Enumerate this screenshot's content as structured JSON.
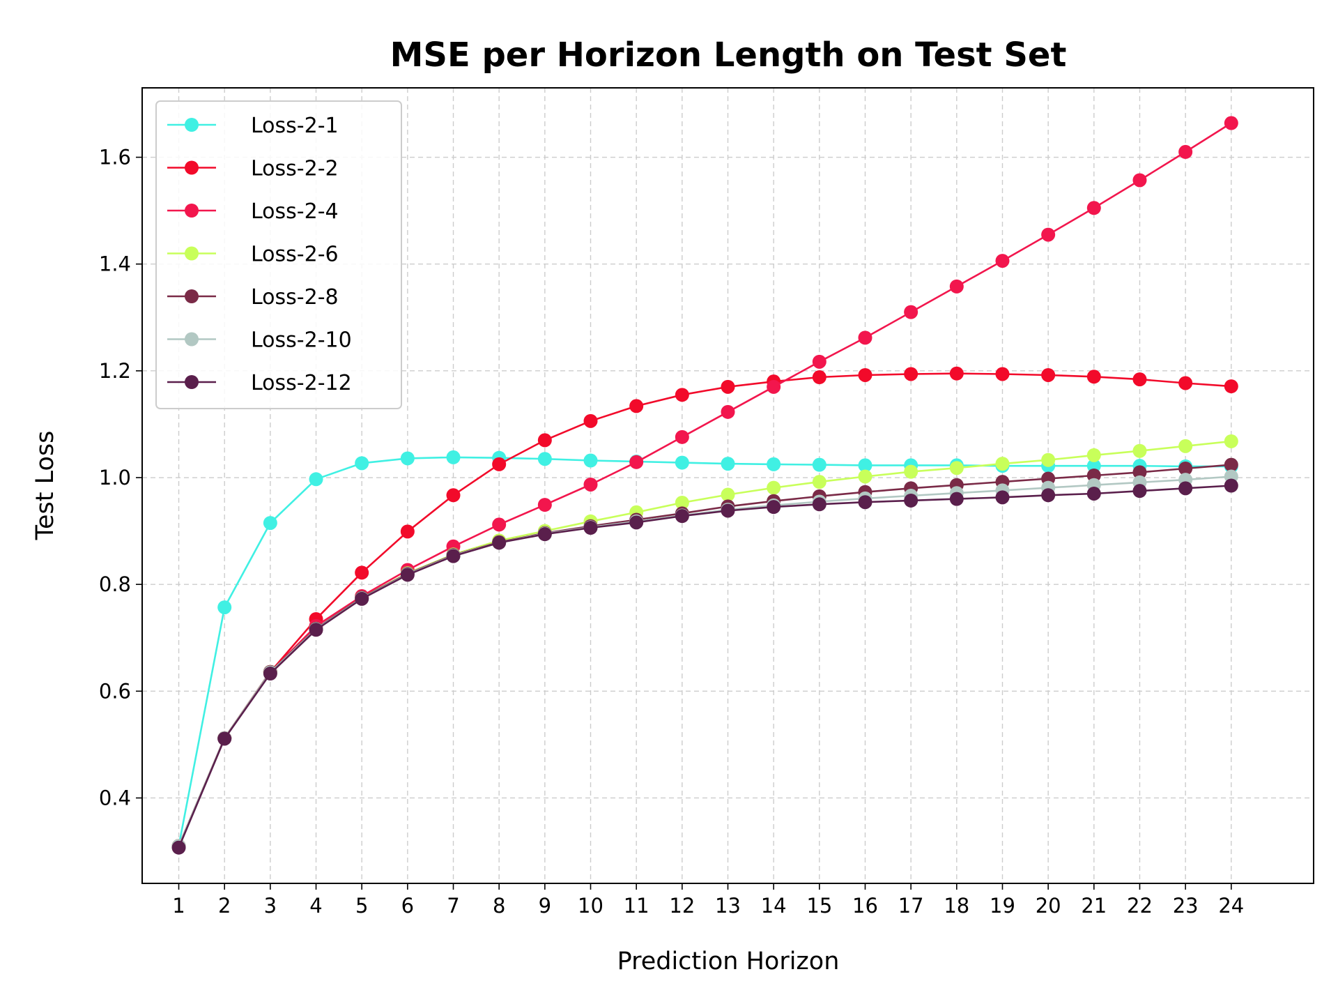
{
  "chart_data": {
    "type": "line",
    "title": "MSE per Horizon Length on Test Set",
    "xlabel": "Prediction Horizon",
    "ylabel": "Test Loss",
    "x": [
      1,
      2,
      3,
      4,
      5,
      6,
      7,
      8,
      9,
      10,
      11,
      12,
      13,
      14,
      15,
      16,
      17,
      18,
      19,
      20,
      21,
      22,
      23,
      24
    ],
    "xlim": [
      0.2,
      25.8
    ],
    "ylim": [
      0.24,
      1.73
    ],
    "yticks": [
      0.4,
      0.6,
      0.8,
      1.0,
      1.2,
      1.4,
      1.6
    ],
    "ytick_labels": [
      "0.4",
      "0.6",
      "0.8",
      "1.0",
      "1.2",
      "1.4",
      "1.6"
    ],
    "xtick_labels": [
      "1",
      "2",
      "3",
      "4",
      "5",
      "6",
      "7",
      "8",
      "9",
      "10",
      "11",
      "12",
      "13",
      "14",
      "15",
      "16",
      "17",
      "18",
      "19",
      "20",
      "21",
      "22",
      "23",
      "24"
    ],
    "grid": true,
    "legend_position": "top-left",
    "series": [
      {
        "name": "Loss-2-1",
        "color": "#40f0e3",
        "values": [
          0.31,
          0.757,
          0.915,
          0.997,
          1.027,
          1.036,
          1.038,
          1.037,
          1.035,
          1.032,
          1.03,
          1.028,
          1.026,
          1.025,
          1.024,
          1.023,
          1.023,
          1.023,
          1.022,
          1.022,
          1.022,
          1.022,
          1.021,
          1.021
        ]
      },
      {
        "name": "Loss-2-2",
        "color": "#f20a2a",
        "values": [
          0.31,
          0.512,
          0.636,
          0.735,
          0.822,
          0.899,
          0.967,
          1.025,
          1.07,
          1.106,
          1.134,
          1.155,
          1.17,
          1.18,
          1.188,
          1.192,
          1.194,
          1.195,
          1.194,
          1.192,
          1.189,
          1.184,
          1.177,
          1.171
        ]
      },
      {
        "name": "Loss-2-4",
        "color": "#f2164d",
        "values": [
          0.31,
          0.512,
          0.636,
          0.722,
          0.778,
          0.827,
          0.871,
          0.912,
          0.949,
          0.987,
          1.029,
          1.076,
          1.123,
          1.17,
          1.217,
          1.262,
          1.31,
          1.358,
          1.406,
          1.455,
          1.505,
          1.557,
          1.61,
          1.664
        ]
      },
      {
        "name": "Loss-2-6",
        "color": "#c8ff5a",
        "values": [
          0.31,
          0.512,
          0.636,
          0.717,
          0.775,
          0.821,
          0.856,
          0.882,
          0.9,
          0.918,
          0.935,
          0.953,
          0.968,
          0.981,
          0.992,
          1.002,
          1.011,
          1.018,
          1.026,
          1.033,
          1.042,
          1.05,
          1.059,
          1.068
        ]
      },
      {
        "name": "Loss-2-8",
        "color": "#7a2a47",
        "values": [
          0.31,
          0.512,
          0.636,
          0.717,
          0.775,
          0.82,
          0.855,
          0.879,
          0.896,
          0.909,
          0.921,
          0.933,
          0.946,
          0.956,
          0.965,
          0.973,
          0.98,
          0.986,
          0.992,
          0.998,
          1.004,
          1.01,
          1.017,
          1.024
        ]
      },
      {
        "name": "Loss-2-10",
        "color": "#b2c8c3",
        "values": [
          0.31,
          0.512,
          0.635,
          0.716,
          0.774,
          0.819,
          0.854,
          0.878,
          0.895,
          0.907,
          0.918,
          0.929,
          0.94,
          0.948,
          0.955,
          0.961,
          0.966,
          0.971,
          0.976,
          0.981,
          0.986,
          0.991,
          0.996,
          1.002
        ]
      },
      {
        "name": "Loss-2-12",
        "color": "#5a1f4c",
        "values": [
          0.307,
          0.511,
          0.633,
          0.715,
          0.773,
          0.818,
          0.853,
          0.878,
          0.894,
          0.906,
          0.916,
          0.928,
          0.938,
          0.945,
          0.95,
          0.954,
          0.957,
          0.96,
          0.963,
          0.967,
          0.97,
          0.975,
          0.98,
          0.985
        ]
      }
    ]
  }
}
